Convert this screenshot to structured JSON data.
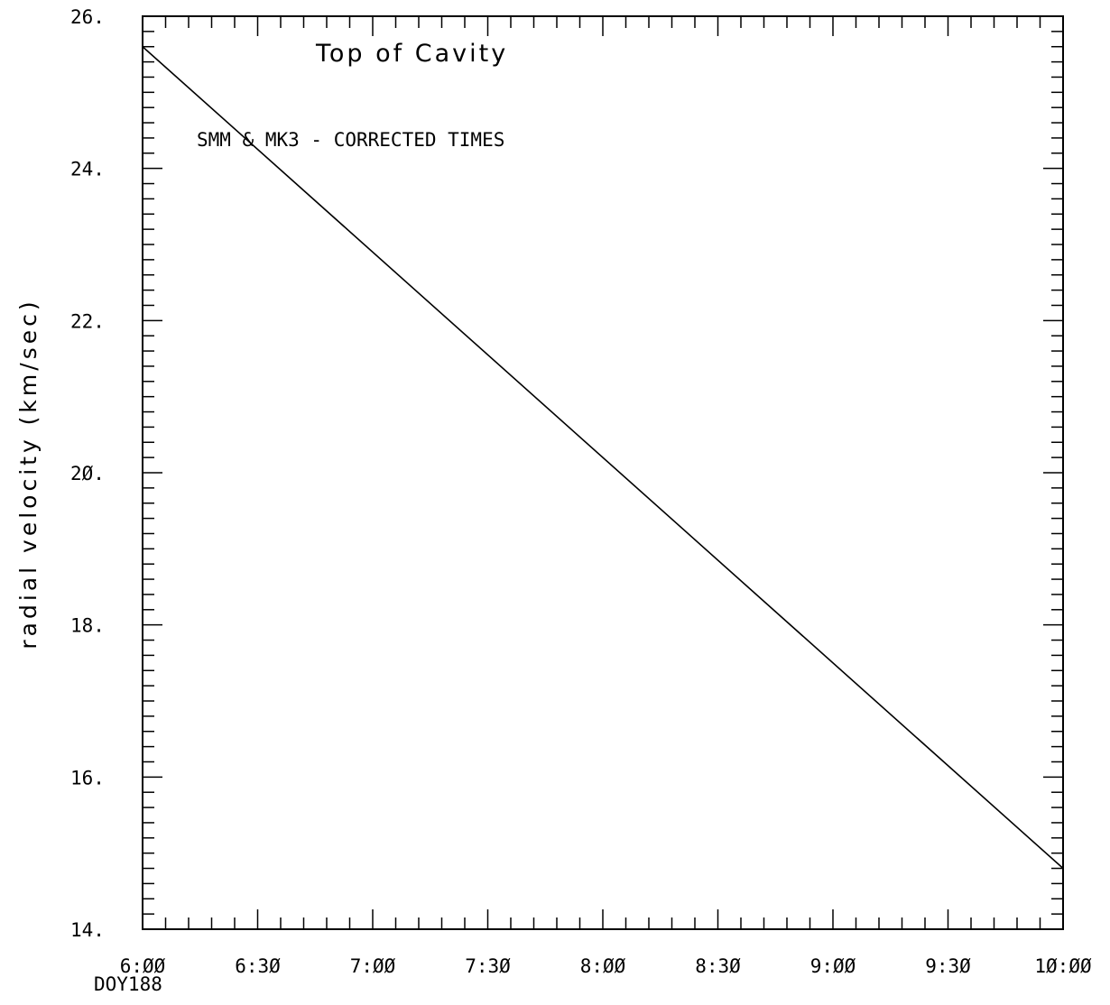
{
  "chart_data": {
    "type": "line",
    "title": "Top of Cavity",
    "annotation": "SMM & MK3 - CORRECTED TIMES",
    "xlabel": "",
    "ylabel": "radial velocity (km/sec)",
    "x_sub_label": "DOY188",
    "x_axis": {
      "min": "6:00",
      "max": "10:00",
      "ticks": [
        "6:ØØ",
        "6:3Ø",
        "7:ØØ",
        "7:3Ø",
        "8:ØØ",
        "8:3Ø",
        "9:ØØ",
        "9:3Ø",
        "1Ø:ØØ"
      ],
      "minor_per_major": 5
    },
    "y_axis": {
      "min": 14,
      "max": 26,
      "ticks": [
        "14.",
        "16.",
        "18.",
        "2Ø.",
        "22.",
        "24.",
        "26."
      ],
      "tick_values": [
        14,
        16,
        18,
        20,
        22,
        24,
        26
      ],
      "minor_step": 0.2
    },
    "series": [
      {
        "x": [
          "6:00",
          "10:00"
        ],
        "y": [
          25.6,
          14.8
        ]
      }
    ],
    "grid": false
  }
}
